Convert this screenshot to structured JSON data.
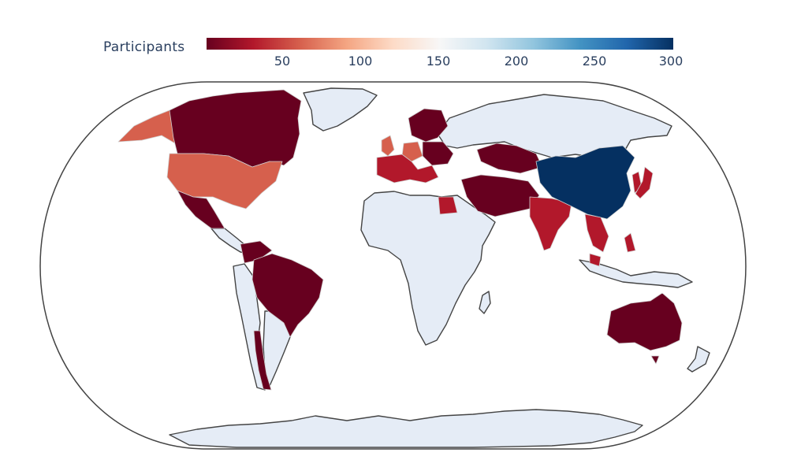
{
  "legend": {
    "title": "Participants",
    "ticks": [
      "50",
      "100",
      "150",
      "200",
      "250",
      "300"
    ],
    "min": 1,
    "max": 300,
    "colorscale": [
      "#67001f",
      "#b2182b",
      "#d6604d",
      "#f4a582",
      "#fddbc7",
      "#f7f7f7",
      "#d1e5f0",
      "#92c5de",
      "#4393c3",
      "#2166ac",
      "#053061"
    ]
  },
  "map": {
    "projection": "natural-earth",
    "land_color": "#e5ecf6",
    "coastline_color": "#444444"
  }
}
